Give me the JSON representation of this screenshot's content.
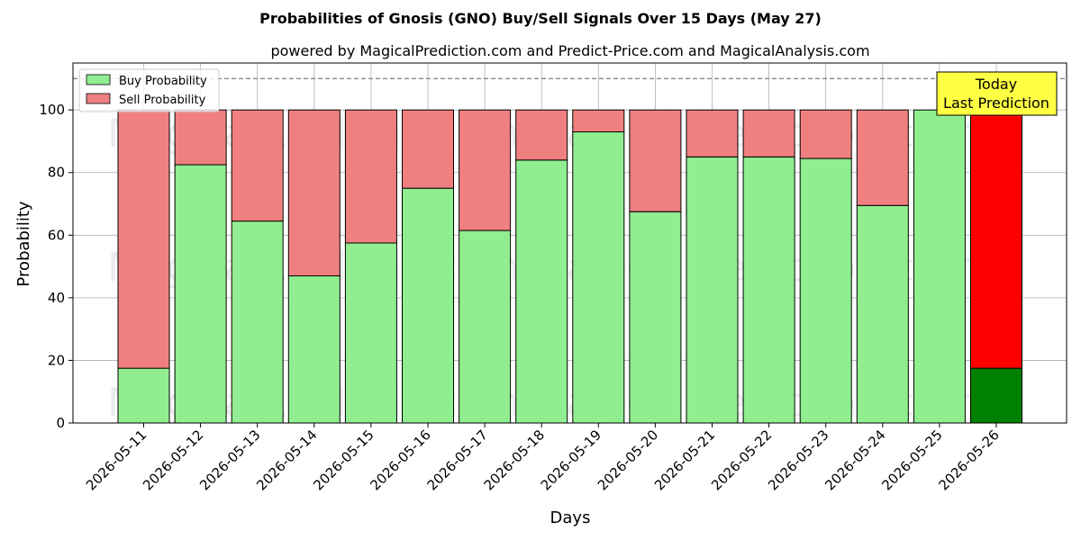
{
  "chart_data": {
    "type": "bar",
    "stacked": true,
    "title": "Probabilities of Gnosis (GNO) Buy/Sell Signals Over 15 Days (May 27)",
    "subtitle": "powered by MagicalPrediction.com and Predict-Price.com and MagicalAnalysis.com",
    "xlabel": "Days",
    "ylabel": "Probability",
    "ylim": [
      0,
      115
    ],
    "yticks": [
      0,
      20,
      40,
      60,
      80,
      100
    ],
    "grid": true,
    "legend_position": "top-left",
    "reference_line": 110,
    "categories": [
      "2026-05-11",
      "2026-05-12",
      "2026-05-13",
      "2026-05-14",
      "2026-05-15",
      "2026-05-16",
      "2026-05-17",
      "2026-05-18",
      "2026-05-19",
      "2026-05-20",
      "2026-05-21",
      "2026-05-22",
      "2026-05-23",
      "2026-05-24",
      "2026-05-25",
      "2026-05-26"
    ],
    "series": [
      {
        "name": "Buy Probability",
        "color": "#90ee90",
        "highlight_color": "#008000",
        "values": [
          17.5,
          82.5,
          64.5,
          47,
          57.5,
          75,
          61.5,
          84,
          93,
          67.5,
          85,
          85,
          84.5,
          69.5,
          100,
          17.5
        ]
      },
      {
        "name": "Sell Probability",
        "color": "#f08080",
        "highlight_color": "#ff0000",
        "values": [
          82.5,
          17.5,
          35.5,
          53,
          42.5,
          25,
          38.5,
          16,
          7,
          32.5,
          15,
          15,
          15.5,
          30.5,
          0,
          82.5
        ]
      }
    ],
    "highlight_index": 15,
    "annotation": {
      "lines": [
        "Today",
        "Last Prediction"
      ],
      "color": "#ffff44"
    },
    "watermarks": [
      "MagicalAnalysis.com",
      "MagicalPrediction.com"
    ]
  }
}
